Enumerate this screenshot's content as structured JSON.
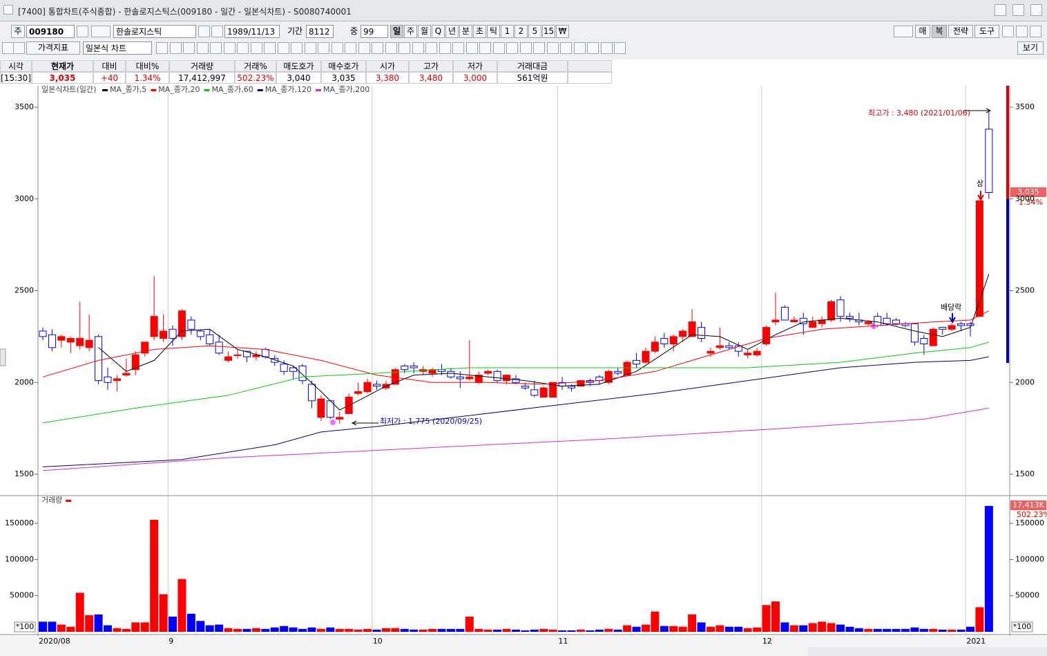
{
  "window": {
    "title": "[7400] 통합차트(주식종합) - 한솔로지스틱스(009180 - 일간 - 일본식차트) - S0080740001"
  },
  "toolbar": {
    "code_prefix": "주",
    "code": "009180",
    "name": "한솔로지스틱",
    "date": "1989/11/13",
    "period_label": "기간",
    "period": "8112",
    "mid_label": "중",
    "mid": "99",
    "intervals": [
      "일",
      "주",
      "월",
      "Q",
      "년",
      "분",
      "초",
      "틱",
      "1",
      "2",
      "5",
      "15",
      "₩"
    ],
    "right_buttons": [
      "매",
      "복",
      "전략",
      "도구"
    ],
    "indicator": "가격지표",
    "chart_style": "일본식 차트",
    "view": "보기"
  },
  "quote": {
    "headers": [
      "시각",
      "현재가",
      "대비",
      "대비%",
      "거래량",
      "거래%",
      "매도호가",
      "매수호가",
      "시가",
      "고가",
      "저가",
      "거래대금"
    ],
    "values": [
      "[15:30]",
      "3,035",
      "+40",
      "1.34%",
      "17,412,997",
      "502.23%",
      "3,040",
      "3,035",
      "3,380",
      "3,480",
      "3,000",
      "561억원"
    ]
  },
  "chart_data": {
    "type": "candlestick",
    "legend_title": "일본식차트(일간)",
    "categories": [
      "2020/08",
      null,
      null,
      null,
      null,
      null,
      null,
      null,
      null,
      null,
      null,
      null,
      null,
      null,
      "9",
      null,
      null,
      null,
      null,
      null,
      null,
      null,
      null,
      null,
      null,
      null,
      null,
      null,
      null,
      null,
      null,
      null,
      null,
      null,
      null,
      null,
      "10",
      null,
      null,
      null,
      null,
      null,
      null,
      null,
      null,
      null,
      null,
      null,
      null,
      null,
      null,
      null,
      null,
      null,
      null,
      null,
      "11",
      null,
      null,
      null,
      null,
      null,
      null,
      null,
      null,
      null,
      null,
      null,
      null,
      null,
      null,
      null,
      null,
      null,
      null,
      null,
      null,
      null,
      "12",
      null,
      null,
      null,
      null,
      null,
      null,
      null,
      null,
      null,
      null,
      null,
      null,
      null,
      null,
      null,
      null,
      null,
      null,
      null,
      null,
      null,
      "2021",
      null,
      null
    ],
    "open": [
      2280,
      2260,
      2230,
      2220,
      2200,
      2190,
      2250,
      2030,
      2010,
      2040,
      2070,
      2160,
      2250,
      2240,
      2290,
      2250,
      2340,
      2280,
      2260,
      2220,
      2120,
      2150,
      2170,
      2140,
      2180,
      2130,
      2100,
      2080,
      2090,
      1990,
      1810,
      1900,
      1800,
      1830,
      1940,
      1950,
      1990,
      1970,
      1990,
      2090,
      2090,
      2060,
      2050,
      2070,
      2060,
      2030,
      2020,
      2000,
      2050,
      2060,
      2010,
      2020,
      1980,
      1960,
      1920,
      1920,
      2000,
      1980,
      1980,
      2010,
      2030,
      2000,
      2060,
      2040,
      2120,
      2110,
      2170,
      2240,
      2210,
      2250,
      2250,
      2300,
      2160,
      2190,
      2200,
      2200,
      2150,
      2150,
      2210,
      2330,
      2410,
      2330,
      2350,
      2300,
      2320,
      2340,
      2450,
      2360,
      2340,
      2320,
      2360,
      2350,
      2340,
      2320,
      2320,
      2240,
      2200,
      2300,
      2290,
      2320,
      2320,
      2360,
      3380
    ],
    "high": [
      2300,
      2290,
      2260,
      2250,
      2440,
      2370,
      2260,
      2080,
      2040,
      2130,
      2170,
      2220,
      2580,
      2370,
      2310,
      2400,
      2360,
      2290,
      2290,
      2260,
      2170,
      2180,
      2170,
      2170,
      2190,
      2150,
      2120,
      2090,
      2100,
      2010,
      1930,
      1900,
      1840,
      1940,
      2000,
      2020,
      2010,
      2010,
      2080,
      2100,
      2110,
      2090,
      2080,
      2100,
      2080,
      2060,
      2230,
      2060,
      2070,
      2070,
      2040,
      2040,
      2000,
      2010,
      1980,
      2000,
      2030,
      1990,
      2010,
      2020,
      2040,
      2070,
      2080,
      2120,
      2160,
      2190,
      2250,
      2270,
      2260,
      2290,
      2400,
      2330,
      2190,
      2300,
      2220,
      2220,
      2180,
      2190,
      2310,
      2490,
      2420,
      2360,
      2380,
      2360,
      2360,
      2450,
      2470,
      2380,
      2380,
      2340,
      2380,
      2380,
      2350,
      2330,
      2320,
      2260,
      2300,
      2300,
      2320,
      2330,
      2330,
      2990,
      3480
    ],
    "low": [
      2230,
      2170,
      2190,
      2160,
      2180,
      2170,
      1990,
      1960,
      1950,
      2030,
      2040,
      2140,
      2230,
      2220,
      2200,
      2230,
      2260,
      2230,
      2200,
      2150,
      2110,
      2130,
      2110,
      2120,
      2130,
      2090,
      2040,
      2020,
      1990,
      1860,
      1790,
      1800,
      1775,
      1830,
      1930,
      1940,
      1960,
      1960,
      1990,
      2050,
      2050,
      2040,
      2030,
      2040,
      2020,
      1970,
      2010,
      1990,
      2040,
      2000,
      1990,
      1990,
      1960,
      1920,
      1920,
      1920,
      1960,
      1950,
      1980,
      1980,
      1990,
      1990,
      2040,
      2040,
      2080,
      2100,
      2160,
      2190,
      2170,
      2220,
      2250,
      2220,
      2140,
      2180,
      2180,
      2140,
      2130,
      2140,
      2200,
      2310,
      2340,
      2330,
      2260,
      2300,
      2300,
      2330,
      2330,
      2330,
      2310,
      2310,
      2300,
      2310,
      2310,
      2300,
      2200,
      2150,
      2200,
      2260,
      2280,
      2280,
      2250,
      2360,
      3000
    ],
    "close": [
      2250,
      2190,
      2250,
      2240,
      2240,
      2230,
      2010,
      2000,
      2020,
      2050,
      2150,
      2220,
      2360,
      2280,
      2240,
      2390,
      2290,
      2250,
      2210,
      2160,
      2140,
      2150,
      2140,
      2150,
      2140,
      2110,
      2060,
      2060,
      2010,
      1900,
      1910,
      1810,
      1810,
      1920,
      1950,
      2000,
      1980,
      1990,
      2070,
      2070,
      2080,
      2070,
      2070,
      2060,
      2030,
      2020,
      2030,
      2040,
      2060,
      2010,
      2040,
      2000,
      1970,
      1930,
      1970,
      2000,
      1980,
      1970,
      2010,
      2000,
      2010,
      2060,
      2050,
      2110,
      2100,
      2170,
      2220,
      2210,
      2250,
      2280,
      2330,
      2240,
      2170,
      2200,
      2190,
      2170,
      2160,
      2170,
      2300,
      2340,
      2340,
      2340,
      2320,
      2330,
      2340,
      2440,
      2360,
      2350,
      2330,
      2330,
      2310,
      2320,
      2320,
      2310,
      2220,
      2210,
      2290,
      2290,
      2310,
      2310,
      2310,
      2990,
      3035
    ],
    "ylim": [
      1387,
      3617
    ],
    "yticks": [
      1500,
      2000,
      2500,
      3000,
      3500
    ],
    "up_color": "#ff0000",
    "down_color": "#0000ff",
    "ma": [
      {
        "name": "MA_종가,5",
        "color": "#000000",
        "x": [
          6,
          9,
          12,
          15,
          18,
          21,
          24,
          27,
          30,
          32,
          34,
          37,
          40,
          44,
          48,
          52,
          56,
          60,
          64,
          67,
          70,
          73,
          76,
          79,
          82,
          86,
          90,
          94,
          97,
          100,
          102
        ],
        "values": [
          2190,
          2060,
          2120,
          2280,
          2290,
          2180,
          2140,
          2090,
          1950,
          1850,
          1900,
          1980,
          2040,
          2050,
          2030,
          2010,
          1980,
          1990,
          2060,
          2160,
          2260,
          2250,
          2180,
          2260,
          2330,
          2350,
          2330,
          2280,
          2250,
          2300,
          2590
        ]
      },
      {
        "name": "MA_종가,20",
        "color": "#ff0000",
        "x": [
          0,
          6,
          12,
          18,
          24,
          30,
          36,
          42,
          48,
          54,
          60,
          66,
          72,
          78,
          84,
          90,
          96,
          100,
          102
        ],
        "values": [
          2030,
          2120,
          2180,
          2200,
          2180,
          2120,
          2040,
          2000,
          2000,
          1990,
          2010,
          2060,
          2150,
          2240,
          2290,
          2310,
          2330,
          2340,
          2390
        ]
      },
      {
        "name": "MA_종가,60",
        "color": "#00d000",
        "x": [
          0,
          10,
          20,
          28,
          36,
          46,
          56,
          66,
          76,
          86,
          94,
          100,
          102
        ],
        "values": [
          1780,
          1860,
          1930,
          2030,
          2050,
          2080,
          2080,
          2080,
          2080,
          2110,
          2160,
          2190,
          2220
        ]
      },
      {
        "name": "MA_종가,120",
        "color": "#000080",
        "x": [
          0,
          15,
          25,
          30,
          36,
          46,
          56,
          66,
          76,
          86,
          94,
          100,
          102
        ],
        "values": [
          1540,
          1580,
          1660,
          1730,
          1760,
          1820,
          1880,
          1940,
          2010,
          2080,
          2110,
          2120,
          2140
        ]
      },
      {
        "name": "MA_종가,200",
        "color": "#e020e0",
        "x": [
          0,
          20,
          40,
          60,
          80,
          95,
          102
        ],
        "values": [
          1520,
          1590,
          1640,
          1690,
          1750,
          1800,
          1860
        ]
      }
    ],
    "annotations": [
      {
        "text": "최고가 : 3,480 (2021/01/06)"
      },
      {
        "text": "최저가 : 1,775 (2020/09/25)"
      },
      {
        "text": "상"
      },
      {
        "text": "배당락"
      }
    ],
    "volume": {
      "title": "거래량",
      "unit_label": "*100",
      "last_label": "17,413K",
      "values": [
        14000,
        14000,
        10000,
        7000,
        54000,
        23000,
        24000,
        9000,
        5000,
        4000,
        13000,
        13000,
        155000,
        52000,
        21000,
        73000,
        25000,
        15000,
        9000,
        10000,
        5000,
        4000,
        4000,
        5000,
        4000,
        6000,
        8000,
        6000,
        4000,
        6000,
        4000,
        6000,
        4000,
        4000,
        3000,
        4000,
        3000,
        5000,
        5000,
        4000,
        3000,
        3000,
        4000,
        4000,
        4000,
        4000,
        21000,
        4000,
        3000,
        3000,
        4000,
        3000,
        2000,
        3000,
        4000,
        3000,
        2000,
        2000,
        3000,
        2000,
        3000,
        4000,
        3000,
        9000,
        7000,
        10000,
        28000,
        8000,
        8000,
        7000,
        24000,
        13000,
        7000,
        9000,
        7000,
        7000,
        5000,
        6000,
        37000,
        42000,
        13000,
        9000,
        9000,
        12000,
        14000,
        12000,
        10000,
        7000,
        5000,
        4000,
        4000,
        4000,
        4000,
        4000,
        6000,
        4000,
        4000,
        3000,
        3000,
        3000,
        7000,
        34000,
        174130
      ],
      "ylim": [
        0,
        185500
      ],
      "yticks": [
        50000,
        100000,
        150000
      ]
    }
  }
}
